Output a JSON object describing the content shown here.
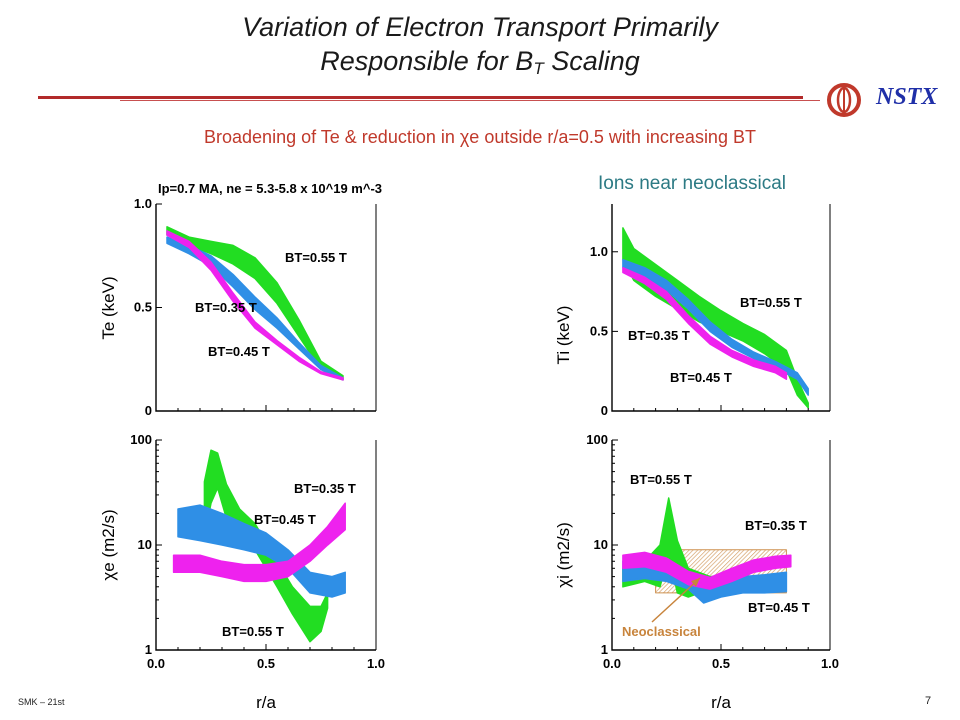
{
  "slide": {
    "title_line1": "Variation of Electron Transport Primarily",
    "title_line2_main": "Responsible for B",
    "title_line2_sub": "T",
    "title_line2_tail": " Scaling",
    "subtitle": "Broadening of Te & reduction in χe outside r/a=0.5 with increasing BT",
    "ions_note": "Ions near neoclassical",
    "logo_text": "NSTX",
    "footer_left": "SMK – 21st",
    "page_number": "7",
    "colors": {
      "title_rule": "#b22a2a",
      "subtitle": "#c0392b",
      "ions_note": "#2c7a84",
      "logo": "#1f2fa8"
    }
  },
  "chart_data": [
    {
      "id": "te",
      "type": "area",
      "title": "Ip=0.7 MA, ne = 5.3-5.8 x 10^19 m^-3",
      "xlabel": "",
      "ylabel": "Te (keV)",
      "xlim": [
        0,
        1.0
      ],
      "ylim": [
        0,
        1.0
      ],
      "yscale": "linear",
      "yticks": [
        {
          "v": 0,
          "label": "0"
        },
        {
          "v": 0.5,
          "label": "0.5"
        },
        {
          "v": 1.0,
          "label": "1.0"
        }
      ],
      "series": [
        {
          "name": "BT=0.55 T",
          "color": "#22dd22",
          "x": [
            0.05,
            0.15,
            0.25,
            0.35,
            0.45,
            0.55,
            0.65,
            0.75,
            0.85
          ],
          "lo": [
            0.85,
            0.8,
            0.76,
            0.71,
            0.64,
            0.52,
            0.36,
            0.2,
            0.15
          ],
          "hi": [
            0.89,
            0.84,
            0.82,
            0.8,
            0.74,
            0.62,
            0.44,
            0.24,
            0.17
          ]
        },
        {
          "name": "BT=0.45 T",
          "color": "#2f8fe6",
          "x": [
            0.05,
            0.15,
            0.25,
            0.35,
            0.45,
            0.55,
            0.65,
            0.75,
            0.85
          ],
          "lo": [
            0.81,
            0.76,
            0.7,
            0.6,
            0.49,
            0.4,
            0.3,
            0.2,
            0.15
          ],
          "hi": [
            0.84,
            0.8,
            0.75,
            0.66,
            0.55,
            0.45,
            0.33,
            0.22,
            0.16
          ]
        },
        {
          "name": "BT=0.35 T",
          "color": "#ee22ee",
          "x": [
            0.05,
            0.15,
            0.25,
            0.35,
            0.45,
            0.55,
            0.65,
            0.75,
            0.85
          ],
          "lo": [
            0.85,
            0.79,
            0.68,
            0.53,
            0.4,
            0.32,
            0.24,
            0.18,
            0.15
          ],
          "hi": [
            0.87,
            0.82,
            0.72,
            0.57,
            0.43,
            0.34,
            0.26,
            0.19,
            0.16
          ]
        }
      ],
      "annotations": [
        {
          "text": "BT=0.55 T",
          "color": "#000000"
        },
        {
          "text": "BT=0.35 T",
          "color": "#000000"
        },
        {
          "text": "BT=0.45 T",
          "color": "#000000"
        }
      ]
    },
    {
      "id": "chie",
      "type": "area",
      "xlabel": "r/a",
      "ylabel": "χe (m2/s)",
      "xlim": [
        0,
        1.0
      ],
      "ylim": [
        1,
        100
      ],
      "yscale": "log",
      "xticks": [
        {
          "v": 0.0,
          "label": "0.0"
        },
        {
          "v": 0.5,
          "label": "0.5"
        },
        {
          "v": 1.0,
          "label": "1.0"
        }
      ],
      "yticks": [
        {
          "v": 1,
          "label": "1"
        },
        {
          "v": 10,
          "label": "10"
        },
        {
          "v": 100,
          "label": "100"
        }
      ],
      "series": [
        {
          "name": "BT=0.55 T",
          "color": "#22dd22",
          "x": [
            0.22,
            0.25,
            0.28,
            0.32,
            0.38,
            0.45,
            0.55,
            0.62,
            0.7,
            0.75,
            0.78
          ],
          "lo": [
            12,
            25,
            35,
            18,
            12,
            9,
            4,
            2.2,
            1.2,
            1.5,
            2.5
          ],
          "hi": [
            40,
            80,
            75,
            38,
            22,
            16,
            7,
            4,
            2.6,
            2.6,
            3.5
          ]
        },
        {
          "name": "BT=0.45 T",
          "color": "#2f8fe6",
          "x": [
            0.1,
            0.2,
            0.3,
            0.4,
            0.5,
            0.6,
            0.7,
            0.8,
            0.86
          ],
          "lo": [
            12,
            11,
            10,
            9,
            8,
            6,
            3.5,
            3.2,
            3.5
          ],
          "hi": [
            22,
            24,
            20,
            16,
            13,
            9,
            5.5,
            5.0,
            5.5
          ]
        },
        {
          "name": "BT=0.35 T",
          "color": "#ee22ee",
          "x": [
            0.08,
            0.2,
            0.3,
            0.4,
            0.5,
            0.6,
            0.7,
            0.78,
            0.86
          ],
          "lo": [
            5.5,
            5.5,
            5,
            4.5,
            4.5,
            5,
            7,
            10,
            14
          ],
          "hi": [
            8,
            8,
            7,
            6.5,
            6.5,
            7,
            10,
            15,
            25
          ]
        }
      ],
      "annotations": [
        {
          "text": "BT=0.35 T",
          "color": "#000000"
        },
        {
          "text": "BT=0.45 T",
          "color": "#000000"
        },
        {
          "text": "BT=0.55 T",
          "color": "#000000"
        }
      ]
    },
    {
      "id": "ti",
      "type": "area",
      "xlabel": "",
      "ylabel": "Ti (keV)",
      "xlim": [
        0,
        1.0
      ],
      "ylim": [
        0,
        1.3
      ],
      "yscale": "linear",
      "yticks": [
        {
          "v": 0,
          "label": "0"
        },
        {
          "v": 0.5,
          "label": "0.5"
        },
        {
          "v": 1.0,
          "label": "1.0"
        }
      ],
      "series": [
        {
          "name": "BT=0.55 T",
          "color": "#22dd22",
          "x": [
            0.05,
            0.1,
            0.2,
            0.3,
            0.4,
            0.5,
            0.6,
            0.7,
            0.8,
            0.85,
            0.9
          ],
          "lo": [
            0.95,
            0.82,
            0.72,
            0.64,
            0.56,
            0.5,
            0.44,
            0.36,
            0.26,
            0.1,
            0.02
          ],
          "hi": [
            1.15,
            1.02,
            0.92,
            0.82,
            0.72,
            0.63,
            0.55,
            0.48,
            0.38,
            0.2,
            0.05
          ]
        },
        {
          "name": "BT=0.45 T",
          "color": "#2f8fe6",
          "x": [
            0.05,
            0.15,
            0.25,
            0.35,
            0.45,
            0.55,
            0.65,
            0.75,
            0.85,
            0.9
          ],
          "lo": [
            0.9,
            0.84,
            0.76,
            0.64,
            0.5,
            0.4,
            0.33,
            0.27,
            0.2,
            0.1
          ],
          "hi": [
            0.95,
            0.9,
            0.82,
            0.7,
            0.56,
            0.45,
            0.37,
            0.31,
            0.24,
            0.14
          ]
        },
        {
          "name": "BT=0.35 T",
          "color": "#ee22ee",
          "x": [
            0.05,
            0.15,
            0.25,
            0.35,
            0.45,
            0.55,
            0.65,
            0.75,
            0.8
          ],
          "lo": [
            0.87,
            0.8,
            0.7,
            0.55,
            0.42,
            0.34,
            0.28,
            0.24,
            0.2
          ],
          "hi": [
            0.9,
            0.84,
            0.75,
            0.6,
            0.47,
            0.38,
            0.32,
            0.28,
            0.24
          ]
        }
      ],
      "annotations": [
        {
          "text": "BT=0.55 T",
          "color": "#000000"
        },
        {
          "text": "BT=0.35 T",
          "color": "#000000"
        },
        {
          "text": "BT=0.45 T",
          "color": "#000000"
        }
      ]
    },
    {
      "id": "chii",
      "type": "area",
      "xlabel": "r/a",
      "ylabel": "χi (m2/s)",
      "xlim": [
        0,
        1.0
      ],
      "ylim": [
        1,
        100
      ],
      "yscale": "log",
      "xticks": [
        {
          "v": 0.0,
          "label": "0.0"
        },
        {
          "v": 0.5,
          "label": "0.5"
        },
        {
          "v": 1.0,
          "label": "1.0"
        }
      ],
      "yticks": [
        {
          "v": 1,
          "label": "1"
        },
        {
          "v": 10,
          "label": "10"
        },
        {
          "v": 100,
          "label": "100"
        }
      ],
      "series": [
        {
          "name": "Neoclassical",
          "color": "#c8843c",
          "hatched": true,
          "x": [
            0.2,
            0.4,
            0.6,
            0.8
          ],
          "lo": [
            3.5,
            3.5,
            3.5,
            3.5
          ],
          "hi": [
            9,
            9,
            9,
            9
          ]
        },
        {
          "name": "BT=0.55 T",
          "color": "#22dd22",
          "x": [
            0.05,
            0.15,
            0.22,
            0.26,
            0.3,
            0.35,
            0.45,
            0.55,
            0.65,
            0.75
          ],
          "lo": [
            4,
            4.5,
            4,
            8,
            3.5,
            3.2,
            3.8,
            4.2,
            4.0,
            4.0
          ],
          "hi": [
            6,
            7,
            10,
            28,
            11,
            6,
            5,
            5.2,
            5.0,
            5.0
          ]
        },
        {
          "name": "BT=0.45 T",
          "color": "#2f8fe6",
          "x": [
            0.05,
            0.15,
            0.25,
            0.35,
            0.42,
            0.5,
            0.6,
            0.7,
            0.8
          ],
          "lo": [
            4.5,
            4.8,
            4.5,
            3.8,
            2.8,
            3.2,
            3.5,
            3.5,
            3.6
          ],
          "hi": [
            7,
            7.5,
            6.5,
            5.2,
            4.2,
            4.5,
            5,
            5.2,
            5.5
          ]
        },
        {
          "name": "BT=0.35 T",
          "color": "#ee22ee",
          "x": [
            0.05,
            0.15,
            0.25,
            0.35,
            0.45,
            0.55,
            0.65,
            0.75,
            0.82
          ],
          "lo": [
            6,
            6.2,
            5.5,
            4.2,
            3.8,
            4.5,
            5.5,
            6,
            6.2
          ],
          "hi": [
            8,
            8.5,
            7.5,
            5.6,
            4.9,
            6,
            7.2,
            7.8,
            8
          ]
        }
      ],
      "annotations": [
        {
          "text": "BT=0.55 T",
          "color": "#000000"
        },
        {
          "text": "BT=0.35 T",
          "color": "#000000"
        },
        {
          "text": "BT=0.45 T",
          "color": "#000000"
        },
        {
          "text": "Neoclassical",
          "color": "#c8843c"
        }
      ]
    }
  ]
}
